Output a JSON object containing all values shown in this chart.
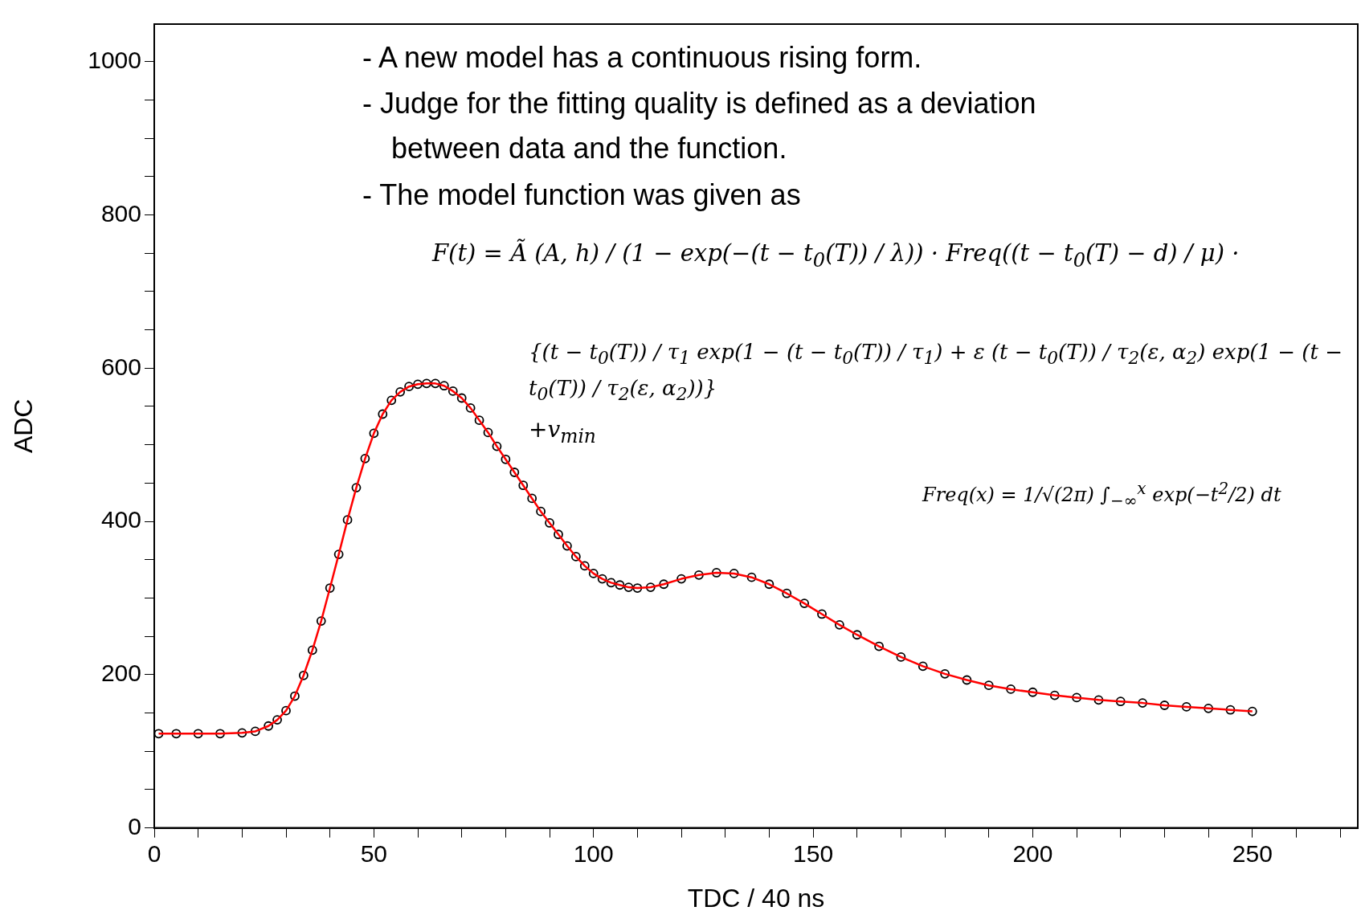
{
  "chart_data": {
    "type": "scatter",
    "xlabel": "TDC / 40 ns",
    "ylabel": "ADC",
    "x": [
      1,
      5,
      10,
      15,
      20,
      23,
      26,
      28,
      30,
      32,
      34,
      36,
      38,
      40,
      42,
      44,
      46,
      48,
      50,
      52,
      54,
      56,
      58,
      60,
      62,
      64,
      66,
      68,
      70,
      72,
      74,
      76,
      78,
      80,
      82,
      84,
      86,
      88,
      90,
      92,
      94,
      96,
      98,
      100,
      102,
      104,
      106,
      108,
      110,
      113,
      116,
      120,
      124,
      128,
      132,
      136,
      140,
      144,
      148,
      152,
      156,
      160,
      165,
      170,
      175,
      180,
      185,
      190,
      195,
      200,
      205,
      210,
      215,
      220,
      225,
      230,
      235,
      240,
      245,
      250
    ],
    "series": [
      {
        "type": "scatter",
        "color": "#000000",
        "marker": "circle",
        "values": [
          123,
          123,
          123,
          123,
          124,
          126,
          133,
          141,
          153,
          172,
          199,
          232,
          270,
          313,
          357,
          402,
          444,
          482,
          515,
          540,
          558,
          569,
          576,
          579,
          580,
          580,
          577,
          570,
          561,
          548,
          532,
          516,
          498,
          481,
          464,
          447,
          430,
          413,
          398,
          383,
          368,
          354,
          342,
          332,
          325,
          320,
          317,
          314,
          313,
          314,
          318,
          325,
          330,
          333,
          332,
          327,
          318,
          306,
          293,
          279,
          265,
          252,
          237,
          223,
          211,
          201,
          193,
          186,
          181,
          177,
          173,
          170,
          167,
          165,
          163,
          160,
          158,
          156,
          154,
          152
        ]
      },
      {
        "type": "line",
        "color": "#ff0000",
        "marker": "none",
        "values": [
          123,
          123,
          123,
          123,
          124,
          126,
          133,
          141,
          153,
          172,
          199,
          232,
          270,
          313,
          357,
          402,
          444,
          482,
          515,
          540,
          558,
          569,
          576,
          579,
          580,
          580,
          577,
          570,
          561,
          548,
          532,
          516,
          498,
          481,
          464,
          447,
          430,
          413,
          398,
          383,
          368,
          354,
          342,
          332,
          325,
          320,
          317,
          314,
          313,
          314,
          318,
          325,
          330,
          333,
          332,
          327,
          318,
          306,
          293,
          279,
          265,
          252,
          237,
          223,
          211,
          201,
          193,
          186,
          181,
          177,
          173,
          170,
          167,
          165,
          163,
          160,
          158,
          156,
          154,
          152
        ]
      }
    ],
    "xlim": [
      0,
      274
    ],
    "xticks": [
      0,
      {
        "value": 10,
        "label": null
      },
      {
        "value": 20,
        "label": null
      },
      {
        "value": 30,
        "label": null
      },
      {
        "value": 40,
        "label": null
      },
      50,
      {
        "value": 60,
        "label": null
      },
      {
        "value": 70,
        "label": null
      },
      {
        "value": 80,
        "label": null
      },
      {
        "value": 90,
        "label": null
      },
      100,
      {
        "value": 110,
        "label": null
      },
      {
        "value": 120,
        "label": null
      },
      {
        "value": 130,
        "label": null
      },
      {
        "value": 140,
        "label": null
      },
      150,
      {
        "value": 160,
        "label": null
      },
      {
        "value": 170,
        "label": null
      },
      {
        "value": 180,
        "label": null
      },
      {
        "value": 190,
        "label": null
      },
      200,
      {
        "value": 210,
        "label": null
      },
      {
        "value": 220,
        "label": null
      },
      {
        "value": 230,
        "label": null
      },
      {
        "value": 240,
        "label": null
      },
      250,
      {
        "value": 260,
        "label": null
      },
      {
        "value": 270,
        "label": null
      }
    ],
    "ylim": [
      0,
      1049
    ],
    "yticks": [
      0,
      {
        "value": 50,
        "label": null
      },
      {
        "value": 100,
        "label": null
      },
      {
        "value": 150,
        "label": null
      },
      200,
      {
        "value": 250,
        "label": null
      },
      {
        "value": 300,
        "label": null
      },
      {
        "value": 350,
        "label": null
      },
      400,
      {
        "value": 450,
        "label": null
      },
      {
        "value": 500,
        "label": null
      },
      {
        "value": 550,
        "label": null
      },
      600,
      {
        "value": 650,
        "label": null
      },
      {
        "value": 700,
        "label": null
      },
      {
        "value": 750,
        "label": null
      },
      800,
      {
        "value": 850,
        "label": null
      },
      {
        "value": 900,
        "label": null
      },
      {
        "value": 950,
        "label": null
      },
      1000
    ],
    "grid": false,
    "annotations": [
      "- A new model has a continuous rising form.",
      "- Judge for the fitting quality is defined as a deviation between data and the function.",
      "- The model function was given as",
      "F(t) = Ã (A, h) / (1 − exp(−(t − t$_{0}$(T)) / λ)) · Freq((t − t$_{0}$(T) − d) / μ) ·",
      "{(t − t$_{0}$(T)) / τ$_{1}$ exp(1 − (t − t$_{0}$(T)) / τ$_{1}$) + ε (t − t$_{0}$(T)) / τ$_{2}$(ε, α$_{2}$) exp(1 − (t − t$_{0}$(T)) / τ$_{2}$(ε, α$_{2}$))}",
      "+v$_{min}$",
      "Freq(x) = 1/√(2π) ∫$_{−∞}$$^{x}$ exp(−t$^{2}$/2) dt"
    ]
  }
}
